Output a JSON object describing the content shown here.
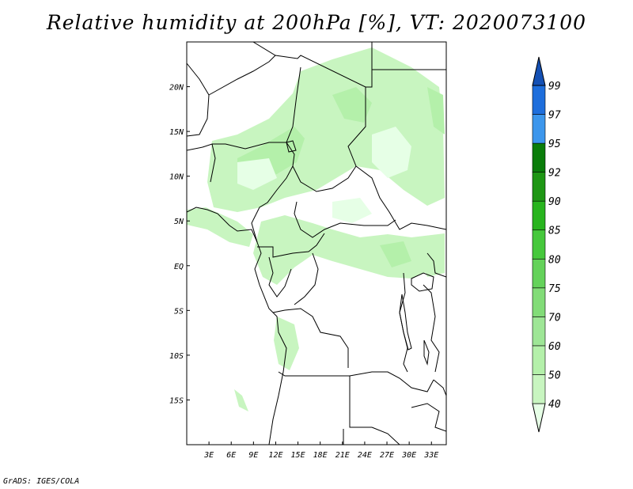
{
  "title": "Relative humidity at 200hPa [%], VT: 2020073100",
  "credit": "GrADS: IGES/COLA",
  "chart_data": {
    "type": "heatmap",
    "title": "Relative humidity at 200hPa [%], VT: 2020073100",
    "variable": "Relative humidity",
    "level": "200hPa",
    "units": "%",
    "valid_time": "2020073100",
    "lon_range": [
      0,
      35
    ],
    "lat_range": [
      -20,
      25
    ],
    "x_ticks": [
      "3E",
      "6E",
      "9E",
      "12E",
      "15E",
      "18E",
      "21E",
      "24E",
      "27E",
      "30E",
      "33E"
    ],
    "x_tick_values": [
      3,
      6,
      9,
      12,
      15,
      18,
      21,
      24,
      27,
      30,
      33
    ],
    "y_ticks": [
      "20N",
      "15N",
      "10N",
      "5N",
      "EQ",
      "5S",
      "10S",
      "15S"
    ],
    "y_tick_values": [
      20,
      15,
      10,
      5,
      0,
      -5,
      -10,
      -15
    ],
    "colorbar": {
      "levels": [
        40,
        50,
        60,
        70,
        75,
        80,
        85,
        90,
        92,
        95,
        97,
        99
      ],
      "labels": [
        "40",
        "50",
        "60",
        "70",
        "75",
        "80",
        "85",
        "90",
        "92",
        "95",
        "97",
        "99"
      ],
      "colors": [
        "#e6ffe6",
        "#c8f5c0",
        "#b4f0aa",
        "#9ee696",
        "#82dc78",
        "#64d25a",
        "#46c83c",
        "#28b41e",
        "#1e9614",
        "#0a7d0a",
        "#3c96ec",
        "#1e6edc",
        "#1450b4"
      ]
    }
  }
}
